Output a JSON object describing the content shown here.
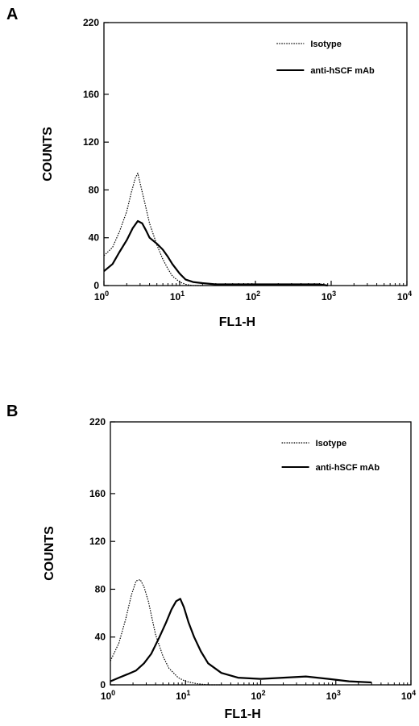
{
  "chart_data": [
    {
      "panel": "A",
      "type": "line",
      "xlabel": "FL1-H",
      "ylabel": "COUNTS",
      "xscale": "log",
      "xlim": [
        1,
        10000
      ],
      "ylim": [
        0,
        220
      ],
      "x_ticks": [
        {
          "base": "10",
          "exp": "0"
        },
        {
          "base": "10",
          "exp": "1"
        },
        {
          "base": "10",
          "exp": "2"
        },
        {
          "base": "10",
          "exp": "3"
        },
        {
          "base": "10",
          "exp": "4"
        }
      ],
      "y_ticks": [
        "0",
        "40",
        "80",
        "120",
        "160",
        "220"
      ],
      "legend_position": "top-right",
      "series": [
        {
          "name": "Isotype",
          "style": "dotted",
          "x": [
            1.0,
            1.3,
            1.6,
            2.0,
            2.3,
            2.6,
            2.8,
            3.0,
            3.5,
            4.0,
            5.0,
            6.0,
            7.0,
            8.0,
            10.0,
            12.0,
            15.0,
            20.0
          ],
          "y": [
            25,
            32,
            45,
            62,
            78,
            90,
            94,
            86,
            68,
            52,
            34,
            22,
            14,
            8,
            3,
            1,
            0,
            0
          ]
        },
        {
          "name": "anti-hSCF  mAb",
          "style": "solid",
          "x": [
            1.0,
            1.3,
            1.6,
            2.0,
            2.4,
            2.8,
            3.2,
            3.6,
            4.0,
            5.0,
            6.0,
            7.0,
            8.0,
            10.0,
            12.0,
            15.0,
            20.0,
            30.0,
            50.0,
            100.0,
            300.0,
            700.0,
            900.0
          ],
          "y": [
            12,
            18,
            28,
            38,
            48,
            54,
            52,
            46,
            40,
            35,
            30,
            24,
            18,
            10,
            5,
            3,
            2,
            1,
            1,
            1,
            1,
            1,
            0
          ]
        }
      ]
    },
    {
      "panel": "B",
      "type": "line",
      "xlabel": "FL1-H",
      "ylabel": "COUNTS",
      "xscale": "log",
      "xlim": [
        1,
        10000
      ],
      "ylim": [
        0,
        220
      ],
      "x_ticks": [
        {
          "base": "10",
          "exp": "0"
        },
        {
          "base": "10",
          "exp": "1"
        },
        {
          "base": "10",
          "exp": "2"
        },
        {
          "base": "10",
          "exp": "3"
        },
        {
          "base": "10",
          "exp": "4"
        }
      ],
      "y_ticks": [
        "0",
        "40",
        "80",
        "120",
        "160",
        "220"
      ],
      "legend_position": "top-right",
      "series": [
        {
          "name": "Isotype",
          "style": "dotted",
          "x": [
            1.0,
            1.3,
            1.6,
            1.9,
            2.2,
            2.5,
            2.8,
            3.2,
            3.6,
            4.0,
            5.0,
            6.0,
            8.0,
            10.0,
            14.0,
            20.0,
            30.0
          ],
          "y": [
            20,
            35,
            55,
            75,
            87,
            88,
            82,
            70,
            55,
            42,
            24,
            14,
            6,
            3,
            1,
            0,
            0
          ]
        },
        {
          "name": "anti-hSCF  mAb",
          "style": "solid",
          "x": [
            1.0,
            1.3,
            1.7,
            2.2,
            2.8,
            3.5,
            4.5,
            5.5,
            6.5,
            7.5,
            8.5,
            9.5,
            11.0,
            13.0,
            16.0,
            20.0,
            30.0,
            50.0,
            100.0,
            200.0,
            400.0,
            800.0,
            1500.0,
            3000.0
          ],
          "y": [
            3,
            6,
            9,
            12,
            18,
            26,
            40,
            52,
            63,
            70,
            72,
            65,
            52,
            40,
            28,
            18,
            10,
            6,
            5,
            6,
            7,
            5,
            3,
            2
          ]
        }
      ]
    }
  ]
}
